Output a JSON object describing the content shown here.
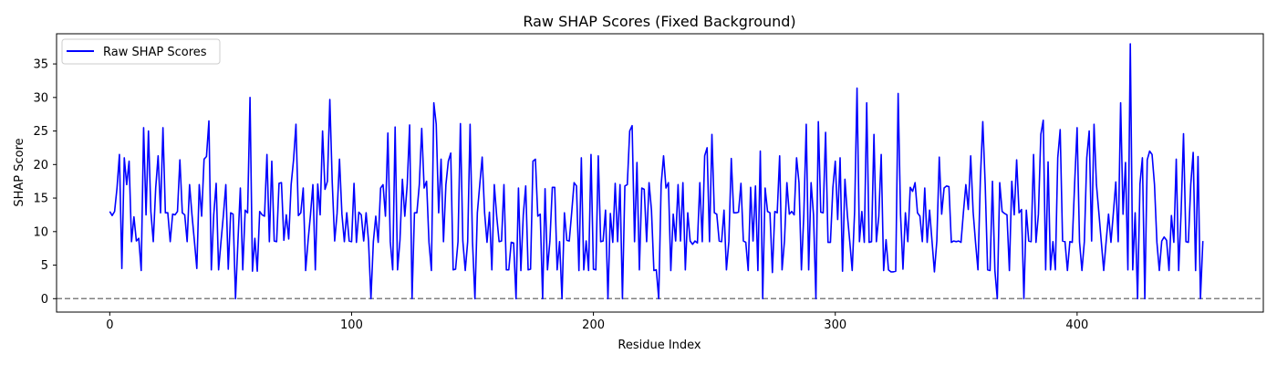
{
  "chart_data": {
    "type": "line",
    "title": "Raw SHAP Scores (Fixed Background)",
    "xlabel": "Residue Index",
    "ylabel": "SHAP Score",
    "xlim": [
      -22,
      477
    ],
    "ylim": [
      -2,
      39.5
    ],
    "xticks": [
      0,
      100,
      200,
      300,
      400
    ],
    "yticks": [
      0,
      5,
      10,
      15,
      20,
      25,
      30,
      35
    ],
    "grid": false,
    "legend": "upper-left",
    "series": [
      {
        "name": "Raw SHAP Scores",
        "color": "#0000ff",
        "x_start": 0,
        "x_step": 1,
        "values": [
          13,
          12.4,
          13,
          16.5,
          21.5,
          4.5,
          21,
          17,
          20.5,
          8.5,
          12.2,
          8.6,
          9,
          4.2,
          25.5,
          12.5,
          25,
          13,
          8.5,
          16.5,
          21.3,
          12.8,
          25.5,
          12.8,
          12.8,
          8.5,
          12.6,
          12.5,
          13,
          20.7,
          12.8,
          12.5,
          8.5,
          17,
          12.5,
          8.6,
          4.5,
          17,
          12.3,
          20.8,
          21.2,
          26.5,
          4.3,
          12.5,
          17.2,
          4.3,
          8.5,
          12.5,
          17,
          4.4,
          12.8,
          12.6,
          0,
          8.5,
          16.5,
          4.3,
          13.2,
          12.8,
          30,
          4.1,
          9,
          4.1,
          13,
          12.5,
          12.3,
          21.5,
          8.5,
          20.5,
          8.6,
          8.5,
          17.2,
          17.3,
          8.7,
          12.5,
          8.9,
          17,
          20.7,
          26,
          12.4,
          12.8,
          16.5,
          4.2,
          8.6,
          12.5,
          17,
          4.3,
          17.1,
          12.5,
          25,
          16.3,
          17.5,
          29.7,
          17.3,
          8.6,
          12.7,
          20.8,
          12.6,
          8.5,
          12.8,
          8.6,
          8.5,
          17.2,
          8.4,
          12.9,
          12.5,
          8.6,
          12.8,
          8.6,
          0,
          8.5,
          12.3,
          8.4,
          16.5,
          17,
          12.3,
          24.7,
          8.5,
          4.3,
          25.6,
          4.3,
          8.7,
          17.8,
          12.3,
          17,
          25.9,
          0,
          12.8,
          12.8,
          17,
          25.4,
          16.5,
          17.5,
          8.4,
          4.2,
          29.2,
          26,
          12.8,
          20.8,
          8.5,
          17,
          20.5,
          21.7,
          4.3,
          4.4,
          8.5,
          26.1,
          8.6,
          4.2,
          8.5,
          26,
          8.5,
          0,
          12.8,
          17,
          21.1,
          12.8,
          8.4,
          12.9,
          4.3,
          17,
          12.3,
          8.5,
          8.6,
          17,
          4.3,
          4.3,
          8.4,
          8.3,
          0,
          16.5,
          4.2,
          12.5,
          16.8,
          4.3,
          4.4,
          20.5,
          20.8,
          12.3,
          12.6,
          0,
          16.4,
          4.3,
          8.6,
          16.6,
          16.6,
          4.3,
          8.5,
          0,
          12.8,
          8.7,
          8.6,
          12.8,
          17.3,
          16.8,
          4.2,
          21,
          4.3,
          8.6,
          4.2,
          21.5,
          4.4,
          4.3,
          21.3,
          8.5,
          8.6,
          13.2,
          0,
          12.7,
          8.4,
          17.2,
          8.5,
          17,
          0,
          16.8,
          17,
          25,
          25.8,
          8.5,
          20.3,
          4.3,
          16.5,
          16.3,
          8.5,
          17.3,
          13.2,
          4.2,
          4.3,
          0,
          17,
          21.3,
          16.5,
          17.3,
          4.2,
          12.6,
          8.6,
          17,
          8.6,
          17.3,
          4.3,
          12.8,
          8.6,
          8.1,
          8.6,
          8.3,
          17.3,
          8.5,
          21.3,
          22.5,
          8.5,
          24.5,
          12.8,
          12.6,
          8.6,
          8.5,
          13.2,
          4.3,
          8.5,
          20.9,
          12.8,
          12.8,
          12.9,
          17.2,
          8.6,
          8.4,
          4.2,
          16.6,
          8.6,
          16.8,
          4.2,
          22,
          0,
          16.5,
          13,
          12.8,
          3.9,
          13,
          12.8,
          21.3,
          4.3,
          8.6,
          17.3,
          12.6,
          13,
          12.5,
          21,
          17.3,
          4.3,
          12.5,
          26,
          4.3,
          17.3,
          12.5,
          0,
          26.4,
          12.9,
          12.8,
          24.8,
          8.4,
          8.4,
          16.5,
          20.5,
          11.8,
          21,
          4.1,
          17.8,
          12.5,
          8.5,
          4.2,
          13,
          31.4,
          8.5,
          13,
          8.4,
          29.2,
          8.4,
          8.5,
          24.5,
          8.5,
          12.3,
          21.5,
          4.2,
          8.8,
          4.3,
          4,
          4,
          4.1,
          30.6,
          12.5,
          4.4,
          12.8,
          8.5,
          16.6,
          16,
          17.3,
          12.8,
          12.3,
          8.5,
          16.5,
          8.4,
          13.2,
          8.6,
          4,
          8.6,
          21.1,
          12.6,
          16.5,
          16.8,
          16.7,
          8.4,
          8.6,
          8.5,
          8.6,
          8.4,
          12.9,
          17,
          13.3,
          21.3,
          13,
          8.4,
          4.3,
          17.8,
          26.4,
          17,
          4.3,
          4.2,
          17.5,
          4.2,
          0,
          17.3,
          13,
          12.7,
          12.5,
          4.2,
          17.5,
          12.5,
          20.7,
          12.8,
          13.3,
          0,
          13.2,
          8.6,
          8.5,
          21.5,
          8.4,
          12.6,
          24.5,
          26.6,
          4.3,
          20.4,
          4.3,
          8.5,
          4.3,
          21,
          25.2,
          8.6,
          8.5,
          4.2,
          8.5,
          8.4,
          17.3,
          25.5,
          8.5,
          4.2,
          8.5,
          21,
          25,
          8.6,
          26,
          17,
          12.8,
          8.5,
          4.2,
          8.5,
          12.6,
          8.4,
          12.8,
          17.4,
          8.5,
          29.2,
          12.6,
          20.3,
          4.3,
          38,
          4.3,
          12.8,
          0,
          17.1,
          21,
          0,
          20.7,
          22,
          21.5,
          17,
          8.4,
          4.2,
          8.6,
          9.2,
          8.7,
          4.2,
          12.4,
          8.4,
          20.8,
          4.2,
          12.8,
          24.6,
          8.5,
          8.4,
          17,
          21.8,
          4.2,
          21.2,
          0,
          8.6
        ]
      }
    ],
    "reference_line": {
      "y": 0,
      "style": "dashed",
      "color": "#808080"
    }
  }
}
